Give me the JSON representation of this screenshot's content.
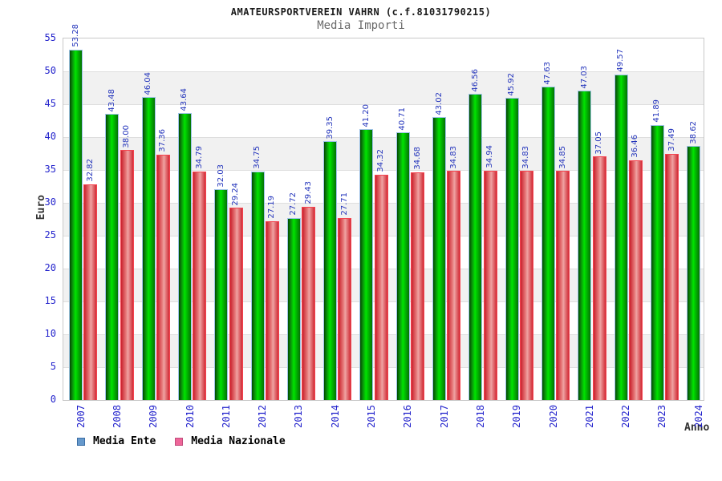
{
  "chart_data": {
    "type": "bar",
    "title": "AMATEURSPORTVEREIN VAHRN (c.f.81031790215)",
    "subtitle": "Media Importi",
    "xlabel": "Anno",
    "ylabel": "Euro",
    "ylim": [
      0,
      55
    ],
    "ytick_step": 5,
    "grid": true,
    "band_shading": true,
    "value_labels": "rotated-90-above-bars",
    "legend_position": "bottom-left",
    "categories": [
      "2007",
      "2008",
      "2009",
      "2010",
      "2011",
      "2012",
      "2013",
      "2014",
      "2015",
      "2016",
      "2017",
      "2018",
      "2019",
      "2020",
      "2021",
      "2022",
      "2023",
      "2024"
    ],
    "series": [
      {
        "name": "Media Ente",
        "bar_style": "green",
        "values": [
          53.28,
          43.48,
          46.04,
          43.64,
          32.03,
          34.75,
          27.72,
          39.35,
          41.2,
          40.71,
          43.02,
          46.56,
          45.92,
          47.63,
          47.03,
          49.57,
          41.89,
          38.62
        ]
      },
      {
        "name": "Media Nazionale",
        "bar_style": "red",
        "values": [
          32.82,
          38.0,
          37.36,
          34.79,
          29.24,
          27.19,
          29.43,
          27.71,
          34.32,
          34.68,
          34.83,
          34.94,
          34.83,
          34.85,
          37.05,
          36.46,
          37.49,
          null
        ]
      }
    ],
    "legend": {
      "items": [
        {
          "label": "Media Ente",
          "fill": "#6699cc",
          "border": "#3c6ea5"
        },
        {
          "label": "Media Nazionale",
          "fill": "#ee6699",
          "border": "#c24d7d"
        }
      ]
    }
  },
  "colors": {
    "bar_green_center": "#00e400",
    "bar_green_edge": "#024a02",
    "bar_green_border": "#9fc3e8",
    "bar_red_center": "#efa3a3",
    "bar_red_edge": "#c9202c",
    "bar_red_border": "#f5434f",
    "axis_tick_text": "#2222cc",
    "value_label_text": "#2233bb",
    "title_text": "#1a1a1a",
    "subtitle_text": "#6a6a6a",
    "axis_title_text": "#333333",
    "band_gray": "#f1f1f1",
    "plot_border": "#c8c8c8"
  }
}
